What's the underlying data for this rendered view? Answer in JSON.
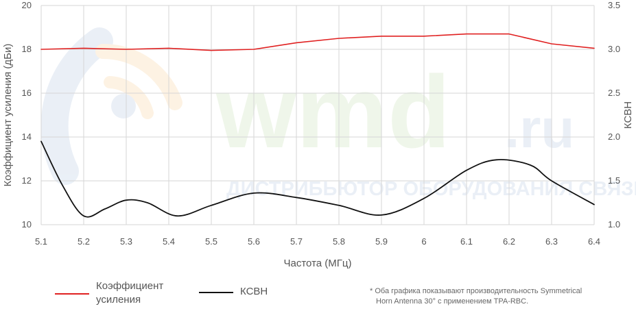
{
  "chart_data": {
    "type": "line",
    "xlabel": "Частота (МГц)",
    "ylabel_left": "Коэффициент усиления (дБи)",
    "ylabel_right": "КСВН",
    "x_ticks": [
      "5.1",
      "5.2",
      "5.3",
      "5.4",
      "5.5",
      "5.6",
      "5.7",
      "5.8",
      "5.9",
      "6",
      "6.1",
      "6.2",
      "6.3",
      "6.4"
    ],
    "y_left_ticks": [
      "10",
      "12",
      "14",
      "16",
      "18",
      "20"
    ],
    "y_right_ticks": [
      "1.0",
      "1.5",
      "2.0",
      "2.5",
      "3.0",
      "3.5"
    ],
    "xlim": [
      5.1,
      6.4
    ],
    "ylim_left": [
      10,
      20
    ],
    "ylim_right": [
      1.0,
      3.5
    ],
    "grid": true,
    "legend_position": "bottom-left",
    "series": [
      {
        "name": "Коэффициент усиления",
        "axis": "left",
        "color": "#e02020",
        "x": [
          5.1,
          5.2,
          5.3,
          5.4,
          5.5,
          5.6,
          5.7,
          5.8,
          5.9,
          6.0,
          6.1,
          6.2,
          6.3,
          6.4
        ],
        "y": [
          18.0,
          18.05,
          18.0,
          18.05,
          17.95,
          18.0,
          18.3,
          18.5,
          18.6,
          18.6,
          18.7,
          18.7,
          18.25,
          18.05
        ]
      },
      {
        "name": "КСВН",
        "axis": "right",
        "color": "#111111",
        "x": [
          5.1,
          5.15,
          5.2,
          5.25,
          5.3,
          5.35,
          5.42,
          5.5,
          5.6,
          5.7,
          5.8,
          5.9,
          6.0,
          6.1,
          6.17,
          6.25,
          6.3,
          6.4
        ],
        "y": [
          1.95,
          1.45,
          1.1,
          1.18,
          1.28,
          1.25,
          1.1,
          1.22,
          1.36,
          1.31,
          1.22,
          1.11,
          1.3,
          1.62,
          1.74,
          1.68,
          1.5,
          1.23
        ]
      }
    ]
  },
  "legend": {
    "gain_line1": "Коэффициент",
    "gain_line2": "усиления",
    "vswr": "КСВН"
  },
  "footnote": {
    "line1": "* Оба графика показывают производительность Symmetrical",
    "line2": "Horn Antenna 30° с применением TPA-RBC."
  },
  "watermark": {
    "brand": "wmd",
    "suffix": ".ru",
    "tagline": "ДИСТРИБЬЮТОР ОБОРУДОВАНИЯ СВЯЗИ"
  }
}
